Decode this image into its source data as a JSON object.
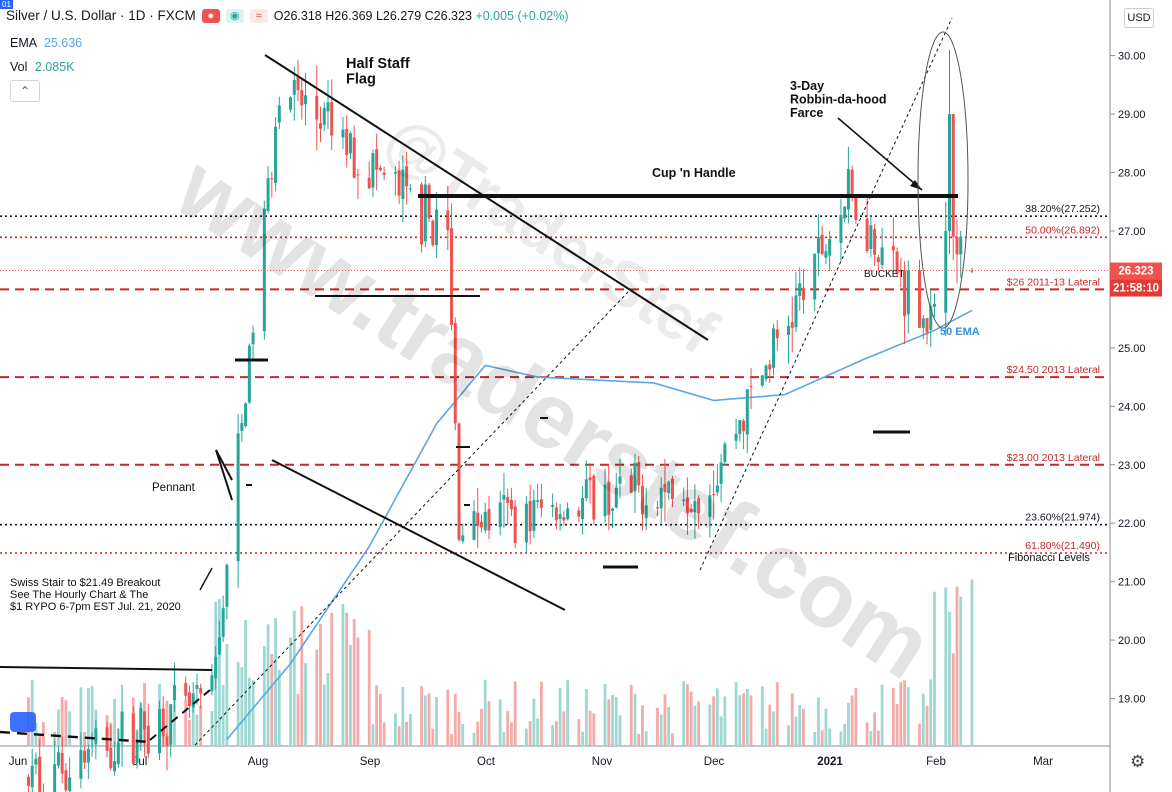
{
  "header": {
    "symbol": "Silver / U.S. Dollar · 1D · FXCM",
    "o": "O26.318",
    "h": "H26.369",
    "l": "L26.279",
    "c": "C26.323",
    "chg": "+0.005 (+0.02%)"
  },
  "indicators": {
    "ema_label": "EMA",
    "ema_value": "25.636",
    "vol_label": "Vol",
    "vol_value": "2.085K"
  },
  "badge": "01",
  "currency_button": "USD",
  "price_labels": {
    "last_price": "26.323",
    "countdown": "21:58:10"
  },
  "colors": {
    "up": "#26a69a",
    "down": "#ef5350",
    "ema": "#5aa7e6",
    "vol_up": "#9fd8d2",
    "vol_down": "#f4aaa8",
    "level_red": "#c62828",
    "last_price_bg": "#ef5350",
    "countdown_bg": "#e53935"
  },
  "annotations": {
    "half_staff": "Half Staff\nFlag",
    "robbin": "3-Day\nRobbin-da-hood\nFarce",
    "cup": "Cup 'n Handle",
    "bucket": "BUCKET",
    "pennant": "Pennant",
    "swiss": "Swiss Stair to $21.49 Breakout\nSee The Hourly Chart & The\n$1 RYPO 6-7pm EST Jul. 21, 2020",
    "ema50": "50 EMA",
    "fib_levels": "Fibonacci Levels",
    "watermark": "www.traderstef.com",
    "watermark2": "@TraderStef"
  },
  "chart_data": {
    "type": "candlestick",
    "title": "Silver / U.S. Dollar · 1D · FXCM",
    "x_ticks": [
      "Jun",
      "Jul",
      "Aug",
      "Sep",
      "Oct",
      "Nov",
      "Dec",
      "2021",
      "Feb",
      "Mar"
    ],
    "y_ticks": [
      19.0,
      20.0,
      21.0,
      22.0,
      23.0,
      24.0,
      25.0,
      26.0,
      27.0,
      28.0,
      29.0,
      30.0
    ],
    "ylim": [
      18.3,
      30.5
    ],
    "last_close": 26.323,
    "horizontal_levels": [
      {
        "label": "38.20%(27.252)",
        "value": 27.252,
        "style": "dotted",
        "color": "#131722"
      },
      {
        "label": "50.00%(26.892)",
        "value": 26.892,
        "style": "dotted",
        "color": "#c62828"
      },
      {
        "label": "$26 2011-13 Lateral",
        "value": 26.0,
        "style": "dashed",
        "color": "#c62828"
      },
      {
        "label": "$24.50 2013 Lateral",
        "value": 24.5,
        "style": "dashed",
        "color": "#c62828"
      },
      {
        "label": "$23.00 2013 Lateral",
        "value": 23.0,
        "style": "dashed",
        "color": "#c62828"
      },
      {
        "label": "23.60%(21.974)",
        "value": 21.974,
        "style": "dotted",
        "color": "#131722"
      },
      {
        "label": "61.80%(21.490)",
        "value": 21.49,
        "style": "dotted",
        "color": "#c62828"
      }
    ],
    "cup_handle_line": 27.6,
    "series": [
      {
        "name": "Silver daily",
        "segments": [
          {
            "from": "2020-06-01",
            "to": "2020-07-20",
            "start": 17.6,
            "end": 19.0
          },
          {
            "from": "2020-07-20",
            "to": "2020-08-07",
            "start": 19.0,
            "end": 29.5
          },
          {
            "from": "2020-08-07",
            "to": "2020-09-21",
            "start": 29.5,
            "end": 26.9
          },
          {
            "from": "2020-09-21",
            "to": "2020-09-24",
            "start": 26.9,
            "end": 22.0
          },
          {
            "from": "2020-09-24",
            "to": "2020-11-30",
            "start": 22.0,
            "end": 22.7
          },
          {
            "from": "2020-11-30",
            "to": "2021-01-06",
            "start": 22.7,
            "end": 27.6
          },
          {
            "from": "2021-01-06",
            "to": "2021-01-29",
            "start": 27.6,
            "end": 25.3
          },
          {
            "from": "2021-01-29",
            "to": "2021-02-01",
            "start": 25.3,
            "end": 30.0
          },
          {
            "from": "2021-02-01",
            "to": "2021-02-08",
            "start": 30.0,
            "end": 26.32
          }
        ]
      },
      {
        "name": "EMA",
        "points": [
          [
            "2020-07-24",
            18.3
          ],
          [
            "2020-08-10",
            19.6
          ],
          [
            "2020-08-31",
            21.6
          ],
          [
            "2020-09-18",
            23.7
          ],
          [
            "2020-10-01",
            24.7
          ],
          [
            "2020-10-15",
            24.5
          ],
          [
            "2020-11-15",
            24.4
          ],
          [
            "2020-12-01",
            24.1
          ],
          [
            "2020-12-20",
            24.2
          ],
          [
            "2021-01-10",
            24.8
          ],
          [
            "2021-01-29",
            25.3
          ],
          [
            "2021-02-08",
            25.64
          ]
        ]
      }
    ]
  }
}
